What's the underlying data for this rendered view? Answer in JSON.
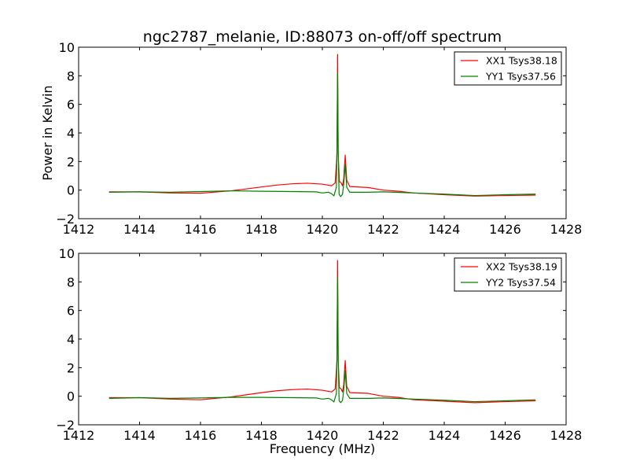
{
  "title": "ngc2787_melanie, ID:88073 on-off/off spectrum",
  "chart_data": [
    {
      "type": "line",
      "ylabel": "Power in Kelvin",
      "xlabel": "",
      "xlim": [
        1412,
        1428
      ],
      "ylim": [
        -2,
        10
      ],
      "xticks": [
        "1412",
        "1414",
        "1416",
        "1418",
        "1420",
        "1422",
        "1424",
        "1426",
        "1428"
      ],
      "yticks": [
        "−2",
        "0",
        "2",
        "4",
        "6",
        "8",
        "10"
      ],
      "legend_position": "top-right",
      "series": [
        {
          "name": "XX1 Tsys38.18",
          "color": "#ff0000",
          "points": [
            [
              1413.0,
              -0.12
            ],
            [
              1414.0,
              -0.12
            ],
            [
              1415.0,
              -0.2
            ],
            [
              1416.0,
              -0.22
            ],
            [
              1417.0,
              -0.05
            ],
            [
              1417.5,
              0.08
            ],
            [
              1418.0,
              0.22
            ],
            [
              1418.5,
              0.35
            ],
            [
              1419.0,
              0.44
            ],
            [
              1419.5,
              0.48
            ],
            [
              1420.0,
              0.42
            ],
            [
              1420.3,
              0.3
            ],
            [
              1420.42,
              0.5
            ],
            [
              1420.48,
              2.5
            ],
            [
              1420.5,
              9.5
            ],
            [
              1420.52,
              2.5
            ],
            [
              1420.56,
              0.6
            ],
            [
              1420.62,
              0.5
            ],
            [
              1420.66,
              0.3
            ],
            [
              1420.7,
              0.8
            ],
            [
              1420.75,
              2.45
            ],
            [
              1420.8,
              0.7
            ],
            [
              1420.9,
              0.25
            ],
            [
              1421.5,
              0.18
            ],
            [
              1422.0,
              0.0
            ],
            [
              1422.5,
              -0.08
            ],
            [
              1423.0,
              -0.2
            ],
            [
              1424.0,
              -0.32
            ],
            [
              1425.0,
              -0.42
            ],
            [
              1426.0,
              -0.38
            ],
            [
              1427.0,
              -0.35
            ]
          ]
        },
        {
          "name": "YY1 Tsys37.56",
          "color": "#008000",
          "points": [
            [
              1413.0,
              -0.15
            ],
            [
              1414.0,
              -0.12
            ],
            [
              1415.0,
              -0.15
            ],
            [
              1416.0,
              -0.1
            ],
            [
              1417.0,
              -0.05
            ],
            [
              1418.0,
              -0.08
            ],
            [
              1419.0,
              -0.1
            ],
            [
              1419.8,
              -0.12
            ],
            [
              1420.0,
              -0.2
            ],
            [
              1420.2,
              -0.15
            ],
            [
              1420.3,
              -0.25
            ],
            [
              1420.38,
              -0.4
            ],
            [
              1420.46,
              0.2
            ],
            [
              1420.48,
              3.0
            ],
            [
              1420.5,
              8.2
            ],
            [
              1420.52,
              2.5
            ],
            [
              1420.55,
              -0.3
            ],
            [
              1420.6,
              -0.45
            ],
            [
              1420.66,
              -0.3
            ],
            [
              1420.7,
              0.4
            ],
            [
              1420.75,
              1.8
            ],
            [
              1420.8,
              0.2
            ],
            [
              1420.9,
              -0.15
            ],
            [
              1421.5,
              -0.15
            ],
            [
              1422.0,
              -0.12
            ],
            [
              1423.0,
              -0.2
            ],
            [
              1424.0,
              -0.28
            ],
            [
              1425.0,
              -0.38
            ],
            [
              1426.0,
              -0.32
            ],
            [
              1427.0,
              -0.28
            ]
          ]
        }
      ]
    },
    {
      "type": "line",
      "ylabel": "",
      "xlabel": "Frequency (MHz)",
      "xlim": [
        1412,
        1428
      ],
      "ylim": [
        -2,
        10
      ],
      "xticks": [
        "1412",
        "1414",
        "1416",
        "1418",
        "1420",
        "1422",
        "1424",
        "1426",
        "1428"
      ],
      "yticks": [
        "−2",
        "0",
        "2",
        "4",
        "6",
        "8",
        "10"
      ],
      "legend_position": "top-right",
      "series": [
        {
          "name": "XX2 Tsys38.19",
          "color": "#ff0000",
          "points": [
            [
              1413.0,
              -0.1
            ],
            [
              1414.0,
              -0.1
            ],
            [
              1415.0,
              -0.2
            ],
            [
              1416.0,
              -0.25
            ],
            [
              1417.0,
              -0.05
            ],
            [
              1417.5,
              0.1
            ],
            [
              1418.0,
              0.25
            ],
            [
              1418.5,
              0.38
            ],
            [
              1419.0,
              0.46
            ],
            [
              1419.5,
              0.5
            ],
            [
              1420.0,
              0.42
            ],
            [
              1420.3,
              0.3
            ],
            [
              1420.42,
              0.5
            ],
            [
              1420.48,
              2.5
            ],
            [
              1420.5,
              9.5
            ],
            [
              1420.52,
              2.5
            ],
            [
              1420.56,
              0.6
            ],
            [
              1420.62,
              0.5
            ],
            [
              1420.66,
              0.3
            ],
            [
              1420.7,
              0.8
            ],
            [
              1420.75,
              2.5
            ],
            [
              1420.8,
              0.7
            ],
            [
              1420.9,
              0.25
            ],
            [
              1421.5,
              0.2
            ],
            [
              1422.0,
              0.0
            ],
            [
              1422.5,
              -0.08
            ],
            [
              1423.0,
              -0.25
            ],
            [
              1424.0,
              -0.35
            ],
            [
              1425.0,
              -0.45
            ],
            [
              1426.0,
              -0.38
            ],
            [
              1427.0,
              -0.32
            ]
          ]
        },
        {
          "name": "YY2 Tsys37.54",
          "color": "#008000",
          "points": [
            [
              1413.0,
              -0.15
            ],
            [
              1414.0,
              -0.1
            ],
            [
              1415.0,
              -0.15
            ],
            [
              1416.0,
              -0.12
            ],
            [
              1417.0,
              -0.08
            ],
            [
              1418.0,
              -0.08
            ],
            [
              1419.0,
              -0.1
            ],
            [
              1419.8,
              -0.12
            ],
            [
              1420.0,
              -0.2
            ],
            [
              1420.2,
              -0.15
            ],
            [
              1420.3,
              -0.25
            ],
            [
              1420.38,
              -0.4
            ],
            [
              1420.46,
              0.2
            ],
            [
              1420.48,
              3.0
            ],
            [
              1420.5,
              8.3
            ],
            [
              1420.52,
              2.5
            ],
            [
              1420.55,
              -0.3
            ],
            [
              1420.6,
              -0.45
            ],
            [
              1420.66,
              -0.3
            ],
            [
              1420.7,
              0.4
            ],
            [
              1420.75,
              1.8
            ],
            [
              1420.8,
              0.2
            ],
            [
              1420.9,
              -0.15
            ],
            [
              1421.5,
              -0.15
            ],
            [
              1422.0,
              -0.12
            ],
            [
              1423.0,
              -0.2
            ],
            [
              1424.0,
              -0.28
            ],
            [
              1425.0,
              -0.38
            ],
            [
              1426.0,
              -0.32
            ],
            [
              1427.0,
              -0.25
            ]
          ]
        }
      ]
    }
  ]
}
